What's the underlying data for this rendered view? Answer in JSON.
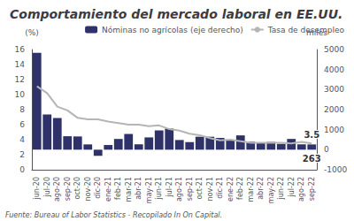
{
  "chart_data": {
    "type": "bar",
    "title": "Comportamiento del mercado laboral en EE.UU.",
    "source": "Fuente: Bureau of Labor Statistics - Recopilado In On Capital.",
    "ylabel": "(%)",
    "y2label": "miles",
    "categories": [
      "jun-20",
      "jul-20",
      "ago-20",
      "sep-20",
      "oct-20",
      "nov-20",
      "dic-20",
      "ene-21",
      "feb-21",
      "mar-21",
      "abr-21",
      "may-21",
      "jun-21",
      "jul-21",
      "ago-21",
      "sep-21",
      "oct-21",
      "nov-21",
      "dic-21",
      "ene-22",
      "feb-22",
      "mar-22",
      "abr-22",
      "may-22",
      "jun-22",
      "jul-22",
      "ago-22",
      "sep-22"
    ],
    "series": [
      {
        "name": "Nóminas no agrícolas (eje derecho)",
        "type": "bar",
        "color": "#2e3268",
        "axis": "y2",
        "values": [
          4833,
          1761,
          1583,
          672,
          661,
          264,
          -306,
          233,
          536,
          785,
          269,
          614,
          962,
          1053,
          483,
          379,
          648,
          647,
          588,
          504,
          714,
          398,
          368,
          386,
          293,
          537,
          268,
          263
        ]
      },
      {
        "name": "Tasa de desempleo",
        "type": "line",
        "color": "#b5b5b5",
        "axis": "y",
        "values": [
          11.1,
          10.2,
          8.4,
          7.9,
          6.9,
          6.7,
          6.7,
          6.4,
          6.2,
          6.0,
          6.0,
          5.8,
          5.9,
          5.4,
          5.2,
          4.8,
          4.6,
          4.2,
          3.9,
          4.0,
          3.8,
          3.6,
          3.6,
          3.6,
          3.6,
          3.5,
          3.7,
          3.5
        ]
      }
    ],
    "ylim": [
      0,
      16
    ],
    "yticks": [
      0,
      2,
      4,
      6,
      8,
      10,
      12,
      14,
      16
    ],
    "y2lim": [
      -1000,
      5000
    ],
    "y2ticks": [
      -1000,
      0,
      1000,
      2000,
      3000,
      4000,
      5000
    ],
    "annotations": [
      {
        "text": "3.5",
        "category": "sep-22",
        "axis": "y"
      },
      {
        "text": "263",
        "category": "sep-22",
        "axis": "y2"
      }
    ],
    "legend": "upper right",
    "grid": false
  }
}
